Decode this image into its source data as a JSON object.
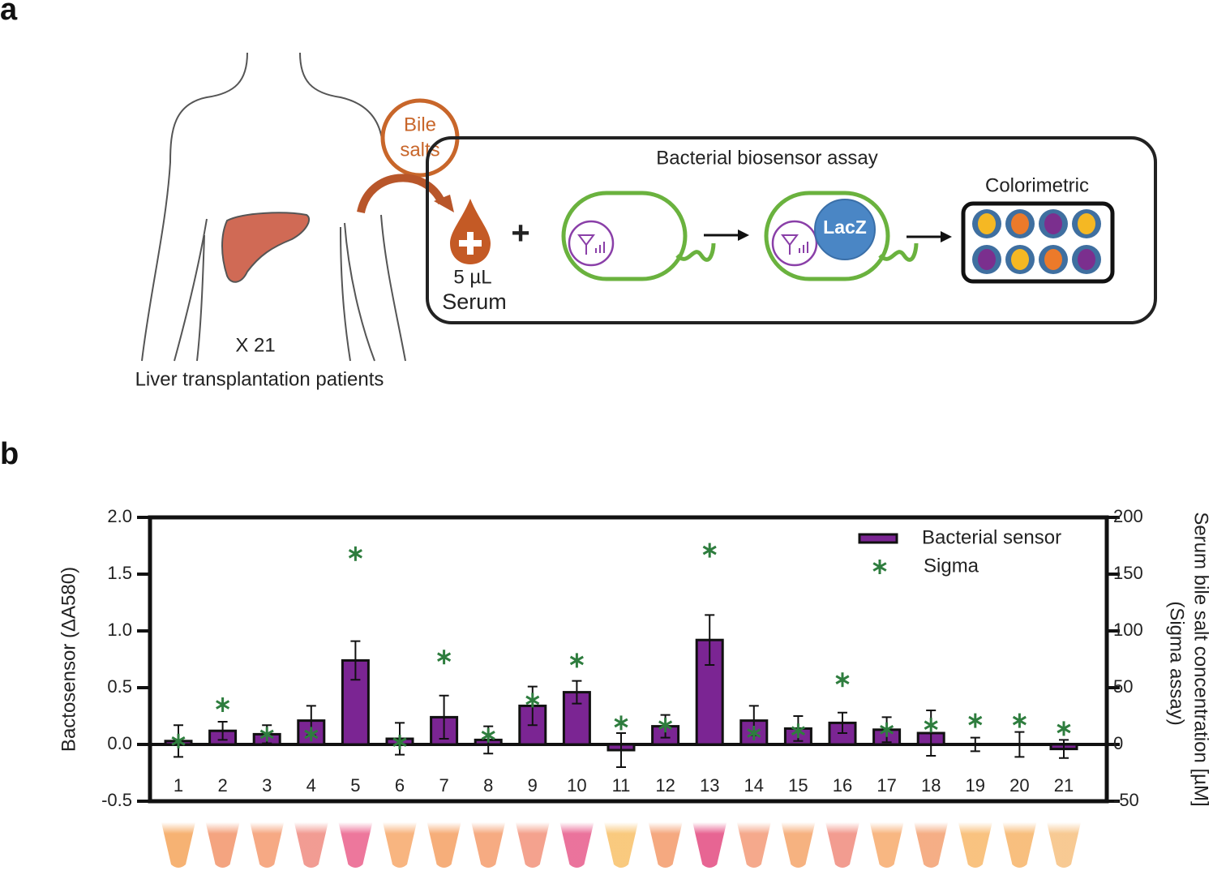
{
  "figure": {
    "panel_a": "a",
    "panel_b": "b"
  },
  "diagram": {
    "bubble_line1": "Bile",
    "bubble_line2": "salts",
    "volume": "5 µL",
    "sample": "Serum",
    "plus": "+",
    "patients_count": "X 21",
    "patients": "Liver transplantation patients",
    "assay": "Bacterial biosensor assay",
    "enzyme": "LacZ",
    "readout": "Colorimetric"
  },
  "chart_data": {
    "type": "bar",
    "ylabel": "Bactosensor (ΔA580)",
    "y2label": [
      "Serum bile salt concentration [µM]",
      "(Sigma assay)"
    ],
    "categories": [
      "1",
      "2",
      "3",
      "4",
      "5",
      "6",
      "7",
      "8",
      "9",
      "10",
      "11",
      "12",
      "13",
      "14",
      "15",
      "16",
      "17",
      "18",
      "19",
      "20",
      "21"
    ],
    "series": [
      {
        "name": "Bacterial sensor",
        "type": "bar",
        "color": "#7b2593",
        "values": [
          0.03,
          0.12,
          0.09,
          0.21,
          0.74,
          0.05,
          0.24,
          0.04,
          0.34,
          0.46,
          -0.05,
          0.16,
          0.92,
          0.21,
          0.14,
          0.19,
          0.13,
          0.1,
          0.0,
          0.0,
          -0.04
        ],
        "errors": [
          0.14,
          0.08,
          0.08,
          0.13,
          0.17,
          0.14,
          0.19,
          0.12,
          0.17,
          0.1,
          0.15,
          0.1,
          0.22,
          0.13,
          0.11,
          0.09,
          0.11,
          0.2,
          0.06,
          0.11,
          0.08
        ]
      },
      {
        "name": "Sigma",
        "type": "scatter",
        "color": "#2e7d3e",
        "axis": "y2",
        "values": [
          3,
          35,
          9,
          9,
          168,
          2,
          77,
          8,
          39,
          74,
          19,
          17,
          171,
          10,
          12,
          57,
          13,
          17,
          21,
          21,
          14
        ]
      }
    ],
    "ylim": [
      -0.5,
      2.0
    ],
    "yticks": [
      {
        "value": -0.5,
        "label": "-0.5"
      },
      {
        "value": 0,
        "label": "0.0"
      },
      0.5,
      {
        "value": 1,
        "label": "1.0"
      },
      1.5,
      {
        "value": 2,
        "label": "2.0"
      }
    ],
    "y2lim": [
      -50,
      200
    ],
    "y2ticks": [
      -50,
      0,
      50,
      100,
      150,
      200
    ],
    "legend": "top-right",
    "tube_colors": [
      "#f5a55a",
      "#f2946a",
      "#f49a6e",
      "#ef8a80",
      "#ea5f8a",
      "#f7a86a",
      "#f5a062",
      "#f49c6c",
      "#f2927a",
      "#e75a8a",
      "#f8c068",
      "#f39a6a",
      "#e34a80",
      "#f39a78",
      "#f5a46a",
      "#f08a7c",
      "#f7aa6c",
      "#f3a070",
      "#f8b86a",
      "#f7b468",
      "#f6c080"
    ]
  }
}
